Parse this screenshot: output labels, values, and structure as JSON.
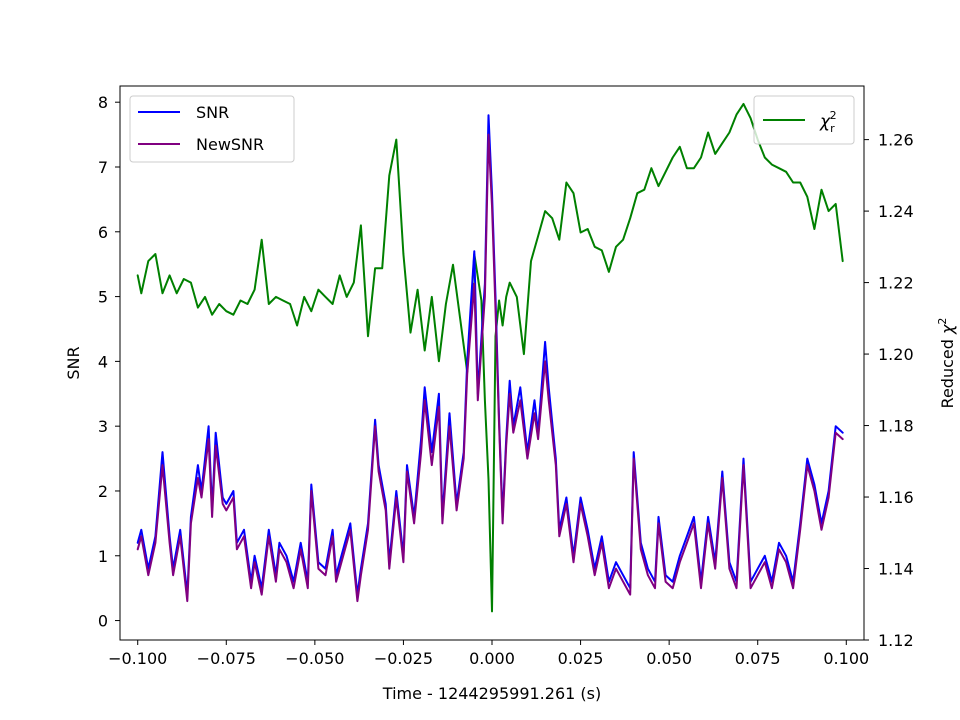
{
  "chart_data": {
    "type": "line",
    "xlabel": "Time - 1244295991.261 (s)",
    "ylabel_left": "SNR",
    "ylabel_right_prefix": "Reduced ",
    "ylabel_right_chi": "χ",
    "ylabel_right_sup": "2",
    "xlim": [
      -0.105,
      0.105
    ],
    "ylim_left": [
      -0.3,
      8.25
    ],
    "ylim_right": [
      1.12,
      1.275
    ],
    "x_ticks": [
      -0.1,
      -0.075,
      -0.05,
      -0.025,
      0.0,
      0.025,
      0.05,
      0.075,
      0.1
    ],
    "x_tick_labels": [
      "−0.100",
      "−0.075",
      "−0.050",
      "−0.025",
      "0.000",
      "0.025",
      "0.050",
      "0.075",
      "0.100"
    ],
    "y_left_ticks": [
      0,
      1,
      2,
      3,
      4,
      5,
      6,
      7,
      8
    ],
    "y_left_tick_labels": [
      "0",
      "1",
      "2",
      "3",
      "4",
      "5",
      "6",
      "7",
      "8"
    ],
    "y_right_ticks": [
      1.12,
      1.14,
      1.16,
      1.18,
      1.2,
      1.22,
      1.24,
      1.26
    ],
    "y_right_tick_labels": [
      "1.12",
      "1.14",
      "1.16",
      "1.18",
      "1.20",
      "1.22",
      "1.24",
      "1.26"
    ],
    "grid": false,
    "legend_left": {
      "placement": "upper-left",
      "entries": [
        {
          "label": "SNR",
          "color": "#0000ff"
        },
        {
          "label": "NewSNR",
          "color": "#800080"
        }
      ]
    },
    "legend_right": {
      "placement": "upper-right",
      "entries": [
        {
          "label_base": "χ",
          "label_sub": "r",
          "label_sup": "2",
          "color": "#008000"
        }
      ]
    },
    "series": [
      {
        "name": "SNR",
        "axis": "left",
        "color": "#0000ff",
        "x": [
          -0.1,
          -0.099,
          -0.097,
          -0.095,
          -0.093,
          -0.091,
          -0.09,
          -0.088,
          -0.086,
          -0.085,
          -0.083,
          -0.082,
          -0.08,
          -0.079,
          -0.078,
          -0.076,
          -0.075,
          -0.073,
          -0.072,
          -0.07,
          -0.068,
          -0.067,
          -0.065,
          -0.063,
          -0.061,
          -0.06,
          -0.058,
          -0.056,
          -0.054,
          -0.052,
          -0.051,
          -0.049,
          -0.047,
          -0.045,
          -0.044,
          -0.042,
          -0.04,
          -0.038,
          -0.037,
          -0.035,
          -0.033,
          -0.032,
          -0.03,
          -0.029,
          -0.027,
          -0.025,
          -0.024,
          -0.022,
          -0.02,
          -0.019,
          -0.017,
          -0.015,
          -0.014,
          -0.012,
          -0.01,
          -0.008,
          -0.007,
          -0.005,
          -0.004,
          -0.002,
          -0.001,
          0.0,
          0.001,
          0.002,
          0.003,
          0.004,
          0.005,
          0.006,
          0.008,
          0.01,
          0.012,
          0.013,
          0.015,
          0.016,
          0.018,
          0.019,
          0.021,
          0.023,
          0.025,
          0.027,
          0.029,
          0.031,
          0.033,
          0.035,
          0.037,
          0.039,
          0.04,
          0.042,
          0.044,
          0.046,
          0.047,
          0.049,
          0.051,
          0.053,
          0.055,
          0.057,
          0.059,
          0.061,
          0.063,
          0.065,
          0.067,
          0.069,
          0.071,
          0.073,
          0.075,
          0.077,
          0.079,
          0.081,
          0.083,
          0.085,
          0.087,
          0.089,
          0.091,
          0.093,
          0.095,
          0.097,
          0.099
        ],
        "values": [
          1.2,
          1.4,
          0.8,
          1.3,
          2.6,
          1.3,
          0.8,
          1.4,
          0.4,
          1.6,
          2.4,
          2.0,
          3.0,
          1.7,
          2.9,
          1.9,
          1.8,
          2.0,
          1.2,
          1.4,
          0.6,
          1.0,
          0.5,
          1.4,
          0.7,
          1.2,
          1.0,
          0.6,
          1.2,
          0.6,
          2.1,
          0.9,
          0.8,
          1.4,
          0.7,
          1.1,
          1.5,
          0.4,
          0.8,
          1.5,
          3.1,
          2.4,
          1.8,
          0.9,
          2.0,
          1.0,
          2.4,
          1.6,
          2.8,
          3.6,
          2.6,
          3.5,
          1.6,
          3.2,
          1.8,
          2.6,
          4.0,
          5.7,
          3.5,
          5.2,
          7.8,
          6.6,
          5.0,
          3.1,
          1.6,
          2.8,
          3.7,
          3.0,
          3.6,
          2.6,
          3.4,
          2.9,
          4.3,
          3.6,
          2.5,
          1.4,
          1.9,
          1.0,
          1.9,
          1.4,
          0.8,
          1.3,
          0.6,
          0.9,
          0.7,
          0.5,
          2.6,
          1.2,
          0.8,
          0.6,
          1.6,
          0.7,
          0.6,
          1.0,
          1.3,
          1.6,
          0.6,
          1.6,
          0.9,
          2.3,
          0.9,
          0.6,
          2.5,
          0.6,
          0.8,
          1.0,
          0.6,
          1.2,
          1.0,
          0.6,
          1.5,
          2.5,
          2.1,
          1.5,
          2.0,
          3.0,
          2.9
        ]
      },
      {
        "name": "NewSNR",
        "axis": "left",
        "color": "#800080",
        "x": [
          -0.1,
          -0.099,
          -0.097,
          -0.095,
          -0.093,
          -0.091,
          -0.09,
          -0.088,
          -0.086,
          -0.085,
          -0.083,
          -0.082,
          -0.08,
          -0.079,
          -0.078,
          -0.076,
          -0.075,
          -0.073,
          -0.072,
          -0.07,
          -0.068,
          -0.067,
          -0.065,
          -0.063,
          -0.061,
          -0.06,
          -0.058,
          -0.056,
          -0.054,
          -0.052,
          -0.051,
          -0.049,
          -0.047,
          -0.045,
          -0.044,
          -0.042,
          -0.04,
          -0.038,
          -0.037,
          -0.035,
          -0.033,
          -0.032,
          -0.03,
          -0.029,
          -0.027,
          -0.025,
          -0.024,
          -0.022,
          -0.02,
          -0.019,
          -0.017,
          -0.015,
          -0.014,
          -0.012,
          -0.01,
          -0.008,
          -0.007,
          -0.005,
          -0.004,
          -0.002,
          -0.001,
          0.0,
          0.001,
          0.002,
          0.003,
          0.004,
          0.005,
          0.006,
          0.008,
          0.01,
          0.012,
          0.013,
          0.015,
          0.016,
          0.018,
          0.019,
          0.021,
          0.023,
          0.025,
          0.027,
          0.029,
          0.031,
          0.033,
          0.035,
          0.037,
          0.039,
          0.04,
          0.042,
          0.044,
          0.046,
          0.047,
          0.049,
          0.051,
          0.053,
          0.055,
          0.057,
          0.059,
          0.061,
          0.063,
          0.065,
          0.067,
          0.069,
          0.071,
          0.073,
          0.075,
          0.077,
          0.079,
          0.081,
          0.083,
          0.085,
          0.087,
          0.089,
          0.091,
          0.093,
          0.095,
          0.097,
          0.099
        ],
        "values": [
          1.1,
          1.3,
          0.7,
          1.2,
          2.4,
          1.2,
          0.7,
          1.3,
          0.3,
          1.5,
          2.2,
          1.9,
          2.8,
          1.6,
          2.7,
          1.8,
          1.7,
          1.9,
          1.1,
          1.3,
          0.5,
          0.9,
          0.4,
          1.3,
          0.6,
          1.1,
          0.9,
          0.5,
          1.1,
          0.5,
          2.0,
          0.8,
          0.7,
          1.3,
          0.6,
          1.0,
          1.4,
          0.3,
          0.7,
          1.4,
          3.0,
          2.3,
          1.7,
          0.8,
          1.9,
          0.9,
          2.3,
          1.5,
          2.6,
          3.4,
          2.4,
          3.3,
          1.5,
          3.0,
          1.7,
          2.5,
          3.8,
          5.2,
          3.4,
          5.0,
          7.5,
          6.4,
          4.8,
          3.0,
          1.5,
          2.7,
          3.5,
          2.9,
          3.4,
          2.5,
          3.2,
          2.8,
          4.0,
          3.4,
          2.4,
          1.3,
          1.8,
          0.9,
          1.8,
          1.3,
          0.7,
          1.2,
          0.5,
          0.8,
          0.6,
          0.4,
          2.5,
          1.1,
          0.7,
          0.5,
          1.5,
          0.6,
          0.5,
          0.9,
          1.2,
          1.5,
          0.5,
          1.5,
          0.8,
          2.2,
          0.8,
          0.5,
          2.4,
          0.5,
          0.7,
          0.9,
          0.5,
          1.1,
          0.9,
          0.5,
          1.4,
          2.4,
          2.0,
          1.4,
          1.9,
          2.9,
          2.8
        ]
      },
      {
        "name": "χr²",
        "axis": "right",
        "color": "#008000",
        "x": [
          -0.1,
          -0.099,
          -0.097,
          -0.095,
          -0.093,
          -0.091,
          -0.089,
          -0.087,
          -0.085,
          -0.083,
          -0.081,
          -0.079,
          -0.077,
          -0.075,
          -0.073,
          -0.071,
          -0.069,
          -0.067,
          -0.065,
          -0.063,
          -0.061,
          -0.059,
          -0.057,
          -0.055,
          -0.053,
          -0.051,
          -0.049,
          -0.047,
          -0.045,
          -0.043,
          -0.041,
          -0.039,
          -0.037,
          -0.035,
          -0.033,
          -0.031,
          -0.029,
          -0.027,
          -0.025,
          -0.023,
          -0.021,
          -0.019,
          -0.017,
          -0.015,
          -0.013,
          -0.011,
          -0.009,
          -0.007,
          -0.005,
          -0.003,
          -0.002,
          -0.001,
          0.0,
          0.001,
          0.002,
          0.003,
          0.004,
          0.005,
          0.007,
          0.009,
          0.011,
          0.013,
          0.015,
          0.017,
          0.019,
          0.021,
          0.023,
          0.025,
          0.027,
          0.029,
          0.031,
          0.033,
          0.035,
          0.037,
          0.039,
          0.041,
          0.043,
          0.045,
          0.047,
          0.049,
          0.051,
          0.053,
          0.055,
          0.057,
          0.059,
          0.061,
          0.063,
          0.065,
          0.067,
          0.069,
          0.071,
          0.073,
          0.075,
          0.077,
          0.079,
          0.081,
          0.083,
          0.085,
          0.087,
          0.089,
          0.091,
          0.093,
          0.095,
          0.097,
          0.099
        ],
        "values": [
          1.222,
          1.217,
          1.226,
          1.228,
          1.217,
          1.222,
          1.217,
          1.221,
          1.22,
          1.213,
          1.216,
          1.211,
          1.214,
          1.212,
          1.211,
          1.215,
          1.214,
          1.218,
          1.232,
          1.214,
          1.216,
          1.215,
          1.214,
          1.208,
          1.216,
          1.212,
          1.218,
          1.216,
          1.214,
          1.222,
          1.216,
          1.22,
          1.236,
          1.205,
          1.224,
          1.224,
          1.25,
          1.26,
          1.228,
          1.206,
          1.218,
          1.201,
          1.216,
          1.198,
          1.214,
          1.225,
          1.21,
          1.195,
          1.228,
          1.215,
          1.187,
          1.165,
          1.128,
          1.205,
          1.215,
          1.208,
          1.216,
          1.22,
          1.216,
          1.2,
          1.226,
          1.233,
          1.24,
          1.238,
          1.232,
          1.248,
          1.245,
          1.234,
          1.235,
          1.23,
          1.229,
          1.223,
          1.23,
          1.232,
          1.238,
          1.245,
          1.246,
          1.252,
          1.247,
          1.251,
          1.255,
          1.258,
          1.252,
          1.252,
          1.255,
          1.262,
          1.256,
          1.259,
          1.262,
          1.267,
          1.27,
          1.266,
          1.26,
          1.255,
          1.253,
          1.252,
          1.251,
          1.248,
          1.248,
          1.244,
          1.235,
          1.246,
          1.24,
          1.242,
          1.226
        ]
      }
    ]
  }
}
